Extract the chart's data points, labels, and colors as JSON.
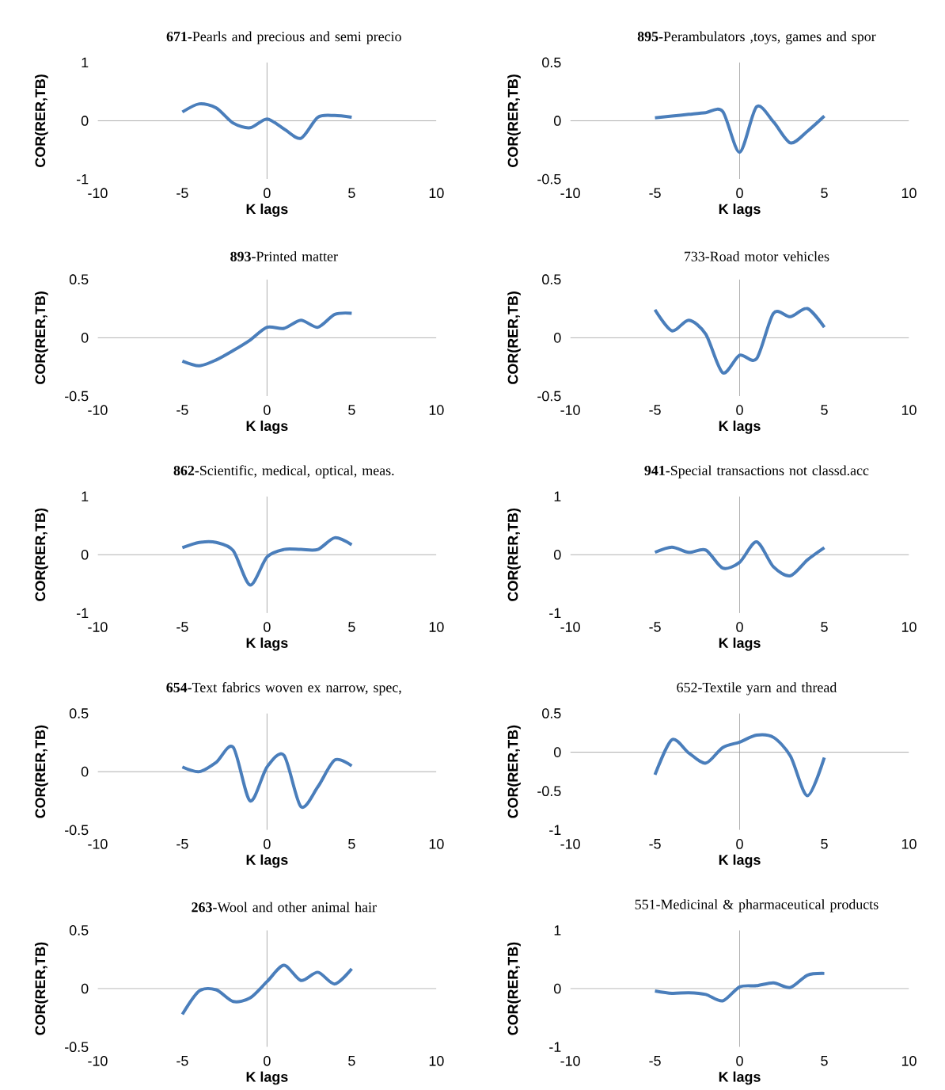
{
  "chart_data": [
    {
      "type": "line",
      "title": "**671-**Pearls and precious and semi precio",
      "xlabel": "K lags",
      "ylabel": "COR(RER,TB)",
      "x": [
        -5,
        -4,
        -3,
        -2,
        -1,
        0,
        1,
        2,
        3,
        4,
        5
      ],
      "xlim": [
        -10,
        10
      ],
      "xticks": [
        -10,
        -5,
        0,
        5,
        10
      ],
      "ylim": [
        -1,
        1
      ],
      "yticks": [
        -1,
        0,
        1
      ],
      "series": [
        {
          "color": "#4a7ebb",
          "values": [
            0.15,
            0.29,
            0.22,
            -0.04,
            -0.12,
            0.03,
            -0.14,
            -0.3,
            0.06,
            0.09,
            0.06
          ]
        }
      ]
    },
    {
      "type": "line",
      "title": "**895-**Perambulators ,toys, games and spor",
      "xlabel": "K lags",
      "ylabel": "COR(RER,TB)",
      "x": [
        -5,
        -4,
        -3,
        -2,
        -1,
        0,
        1,
        2,
        3,
        4,
        5
      ],
      "xlim": [
        -10,
        10
      ],
      "xticks": [
        -10,
        -5,
        0,
        5,
        10
      ],
      "ylim": [
        -0.5,
        0.5
      ],
      "yticks": [
        -0.5,
        0,
        0.5
      ],
      "series": [
        {
          "color": "#4a7ebb",
          "values": [
            0.025,
            0.04,
            0.055,
            0.07,
            0.08,
            -0.27,
            0.12,
            -0.01,
            -0.19,
            -0.09,
            0.04
          ]
        }
      ]
    },
    {
      "type": "line",
      "title": "**893-**Printed matter",
      "xlabel": "K lags",
      "ylabel": "COR(RER,TB)",
      "x": [
        -5,
        -4,
        -3,
        -2,
        -1,
        0,
        1,
        2,
        3,
        4,
        5
      ],
      "xlim": [
        -10,
        10
      ],
      "xticks": [
        -10,
        -5,
        0,
        5,
        10
      ],
      "ylim": [
        -0.5,
        0.5
      ],
      "yticks": [
        -0.5,
        0,
        0.5
      ],
      "series": [
        {
          "color": "#4a7ebb",
          "values": [
            -0.2,
            -0.24,
            -0.19,
            -0.11,
            -0.02,
            0.09,
            0.08,
            0.15,
            0.09,
            0.2,
            0.21
          ]
        }
      ]
    },
    {
      "type": "line",
      "title": "733-Road motor vehicles",
      "xlabel": "K lags",
      "ylabel": "COR(RER,TB)",
      "x": [
        -5,
        -4,
        -3,
        -2,
        -1,
        0,
        1,
        2,
        3,
        4,
        5
      ],
      "xlim": [
        -10,
        10
      ],
      "xticks": [
        -10,
        -5,
        0,
        5,
        10
      ],
      "ylim": [
        -0.5,
        0.5
      ],
      "yticks": [
        -0.5,
        0,
        0.5
      ],
      "series": [
        {
          "color": "#4a7ebb",
          "values": [
            0.24,
            0.06,
            0.15,
            0.03,
            -0.3,
            -0.15,
            -0.18,
            0.21,
            0.18,
            0.25,
            0.09
          ]
        }
      ]
    },
    {
      "type": "line",
      "title": "**862-**Scientific, medical, optical, meas.",
      "xlabel": "K lags",
      "ylabel": "COR(RER,TB)",
      "x": [
        -5,
        -4,
        -3,
        -2,
        -1,
        0,
        1,
        2,
        3,
        4,
        5
      ],
      "xlim": [
        -10,
        10
      ],
      "xticks": [
        -10,
        -5,
        0,
        5,
        10
      ],
      "ylim": [
        -1,
        1
      ],
      "yticks": [
        -1,
        0,
        1
      ],
      "series": [
        {
          "color": "#4a7ebb",
          "values": [
            0.12,
            0.21,
            0.21,
            0.07,
            -0.52,
            -0.04,
            0.09,
            0.09,
            0.09,
            0.29,
            0.17
          ]
        }
      ]
    },
    {
      "type": "line",
      "title": "**941-**Special transactions not classd.acc",
      "xlabel": "K lags",
      "ylabel": "COR(RER,TB)",
      "x": [
        -5,
        -4,
        -3,
        -2,
        -1,
        0,
        1,
        2,
        3,
        4,
        5
      ],
      "xlim": [
        -10,
        10
      ],
      "xticks": [
        -10,
        -5,
        0,
        5,
        10
      ],
      "ylim": [
        -1,
        1
      ],
      "yticks": [
        -1,
        0,
        1
      ],
      "series": [
        {
          "color": "#4a7ebb",
          "values": [
            0.04,
            0.13,
            0.04,
            0.08,
            -0.23,
            -0.13,
            0.22,
            -0.21,
            -0.36,
            -0.09,
            0.12
          ]
        }
      ]
    },
    {
      "type": "line",
      "title": "**654-**Text fabrics woven ex narrow, spec,",
      "xlabel": "K lags",
      "ylabel": "COR(RER,TB)",
      "x": [
        -5,
        -4,
        -3,
        -2,
        -1,
        0,
        1,
        2,
        3,
        4,
        5
      ],
      "xlim": [
        -10,
        10
      ],
      "xticks": [
        -10,
        -5,
        0,
        5,
        10
      ],
      "ylim": [
        -0.5,
        0.5
      ],
      "yticks": [
        -0.5,
        0,
        0.5
      ],
      "series": [
        {
          "color": "#4a7ebb",
          "values": [
            0.04,
            0.0,
            0.08,
            0.21,
            -0.25,
            0.04,
            0.14,
            -0.3,
            -0.13,
            0.1,
            0.05
          ]
        }
      ]
    },
    {
      "type": "line",
      "title": "652-Textile yarn and thread",
      "xlabel": "K lags",
      "ylabel": "COR(RER,TB)",
      "x": [
        -5,
        -4,
        -3,
        -2,
        -1,
        0,
        1,
        2,
        3,
        4,
        5
      ],
      "xlim": [
        -10,
        10
      ],
      "xticks": [
        -10,
        -5,
        0,
        5,
        10
      ],
      "ylim": [
        -1,
        0.5
      ],
      "yticks": [
        -1,
        -0.5,
        0,
        0.5
      ],
      "series": [
        {
          "color": "#4a7ebb",
          "values": [
            -0.29,
            0.16,
            -0.01,
            -0.14,
            0.06,
            0.13,
            0.22,
            0.19,
            -0.05,
            -0.56,
            -0.07
          ]
        }
      ]
    },
    {
      "type": "line",
      "title": "**263-**Wool and other animal hair",
      "xlabel": "K lags",
      "ylabel": "COR(RER,TB)",
      "x": [
        -5,
        -4,
        -3,
        -2,
        -1,
        0,
        1,
        2,
        3,
        4,
        5
      ],
      "xlim": [
        -10,
        10
      ],
      "xticks": [
        -10,
        -5,
        0,
        5,
        10
      ],
      "ylim": [
        -0.5,
        0.5
      ],
      "yticks": [
        -0.5,
        0,
        0.5
      ],
      "series": [
        {
          "color": "#4a7ebb",
          "values": [
            -0.22,
            -0.02,
            -0.01,
            -0.11,
            -0.08,
            0.06,
            0.2,
            0.07,
            0.14,
            0.04,
            0.17
          ]
        }
      ]
    },
    {
      "type": "line",
      "title": "551-Medicinal & pharmaceutical products",
      "xlabel": "K lags",
      "ylabel": "COR(RER,TB)",
      "x": [
        -5,
        -4,
        -3,
        -2,
        -1,
        0,
        1,
        2,
        3,
        4,
        5
      ],
      "xlim": [
        -10,
        10
      ],
      "xticks": [
        -10,
        -5,
        0,
        5,
        10
      ],
      "ylim": [
        -1,
        1
      ],
      "yticks": [
        -1,
        0,
        1
      ],
      "series": [
        {
          "color": "#4a7ebb",
          "values": [
            -0.04,
            -0.08,
            -0.07,
            -0.1,
            -0.21,
            0.03,
            0.05,
            0.1,
            0.02,
            0.23,
            0.26
          ]
        }
      ]
    }
  ]
}
